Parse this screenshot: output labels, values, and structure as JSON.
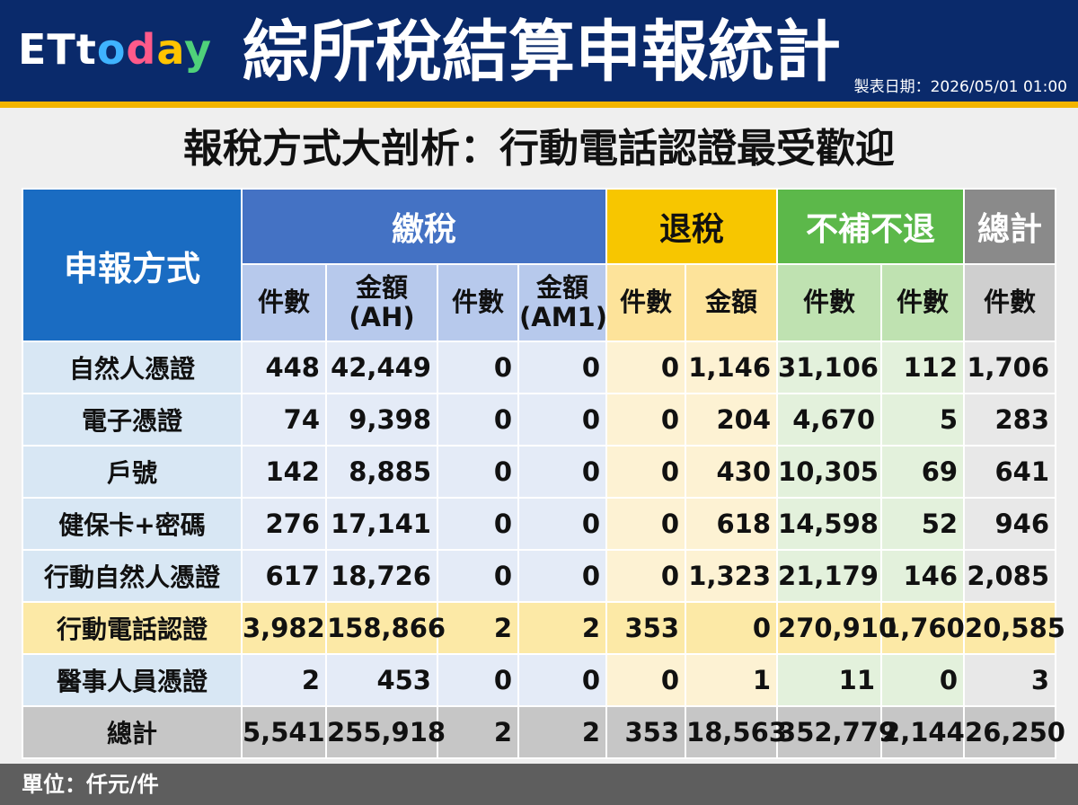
{
  "header": {
    "logo": "ETtoday",
    "title": "綜所稅結算申報統計",
    "date": "製表日期：2026/05/01 01:00"
  },
  "subtitle": "報稅方式大剖析：行動電話認證最受歡迎",
  "table": {
    "method_header": "申報方式",
    "groups": {
      "pay": "繳稅",
      "refund": "退稅",
      "none": "不補不退",
      "total": "總計"
    },
    "subheaders": [
      "件數",
      "金額\n(AH)",
      "件數",
      "金額\n(AM1)",
      "件數",
      "金額",
      "件數",
      "件數",
      "件數"
    ],
    "rows": [
      {
        "label": "自然人憑證",
        "values": [
          "448",
          "42,449",
          "0",
          "0",
          "0",
          "1,146",
          "31,106",
          "112",
          "1,706"
        ]
      },
      {
        "label": "電子憑證",
        "values": [
          "74",
          "9,398",
          "0",
          "0",
          "0",
          "204",
          "4,670",
          "5",
          "283"
        ]
      },
      {
        "label": "戶號",
        "values": [
          "142",
          "8,885",
          "0",
          "0",
          "0",
          "430",
          "10,305",
          "69",
          "641"
        ]
      },
      {
        "label": "健保卡+密碼",
        "values": [
          "276",
          "17,141",
          "0",
          "0",
          "0",
          "618",
          "14,598",
          "52",
          "946"
        ]
      },
      {
        "label": "行動自然人憑證",
        "values": [
          "617",
          "18,726",
          "0",
          "0",
          "0",
          "1,323",
          "21,179",
          "146",
          "2,085"
        ]
      },
      {
        "label": "行動電話認證",
        "values": [
          "3,982",
          "158,866",
          "2",
          "2",
          "353",
          "0",
          "270,910",
          "1,760",
          "20,585"
        ]
      },
      {
        "label": "醫事人員憑證",
        "values": [
          "2",
          "453",
          "0",
          "0",
          "0",
          "1",
          "11",
          "0",
          "3"
        ]
      }
    ],
    "total": {
      "label": "總計",
      "values": [
        "5,541",
        "255,918",
        "2",
        "2",
        "353",
        "18,563",
        "352,779",
        "2,144",
        "26,250"
      ]
    }
  },
  "footer": {
    "unit": "單位：仟元/件"
  }
}
